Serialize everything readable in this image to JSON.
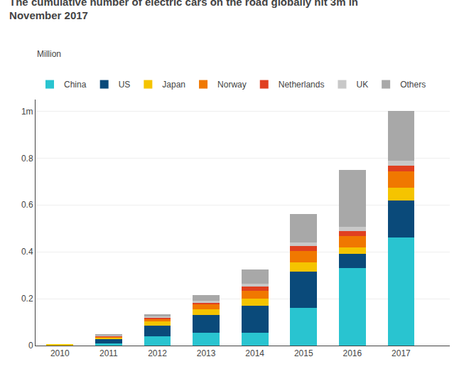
{
  "chart_data": {
    "type": "bar",
    "title": "The cumulative number of electric cars on the road globally hit 3m in\nNovember 2017",
    "ylabel": "Million",
    "stacked": true,
    "grid": true,
    "legend": "top-left",
    "x": [
      2010,
      2011,
      2012,
      2013,
      2014,
      2015,
      2016,
      2017
    ],
    "xlim": [
      2009.5,
      2018.0
    ],
    "xticks": [
      2010,
      2011,
      2012,
      2013,
      2014,
      2015,
      2016,
      2017
    ],
    "ylim": [
      0,
      1.05
    ],
    "yticks": [
      0,
      0.2,
      0.4,
      0.6,
      0.8,
      {
        "value": 1.0,
        "label": "1m"
      }
    ],
    "series": [
      {
        "name": "China",
        "color": "#29C4D0",
        "values": [
          0.001,
          0.01,
          0.04,
          0.055,
          0.055,
          0.16,
          0.33,
          0.46
        ]
      },
      {
        "name": "US",
        "color": "#0A4A7A",
        "values": [
          0.002,
          0.018,
          0.045,
          0.075,
          0.115,
          0.155,
          0.06,
          0.16
        ]
      },
      {
        "name": "Japan",
        "color": "#F5C400",
        "values": [
          0.001,
          0.008,
          0.018,
          0.025,
          0.03,
          0.04,
          0.03,
          0.055
        ]
      },
      {
        "name": "Norway",
        "color": "#F07800",
        "values": [
          0.0,
          0.003,
          0.01,
          0.02,
          0.035,
          0.048,
          0.048,
          0.068
        ]
      },
      {
        "name": "Netherlands",
        "color": "#E04020",
        "values": [
          0.0,
          0.002,
          0.006,
          0.01,
          0.018,
          0.022,
          0.02,
          0.025
        ]
      },
      {
        "name": "UK",
        "color": "#C8C8C8",
        "values": [
          0.0,
          0.002,
          0.004,
          0.006,
          0.012,
          0.015,
          0.018,
          0.022
        ]
      },
      {
        "name": "Others",
        "color": "#A8A8A8",
        "values": [
          0.0,
          0.004,
          0.012,
          0.025,
          0.06,
          0.12,
          0.244,
          0.21
        ]
      }
    ]
  }
}
